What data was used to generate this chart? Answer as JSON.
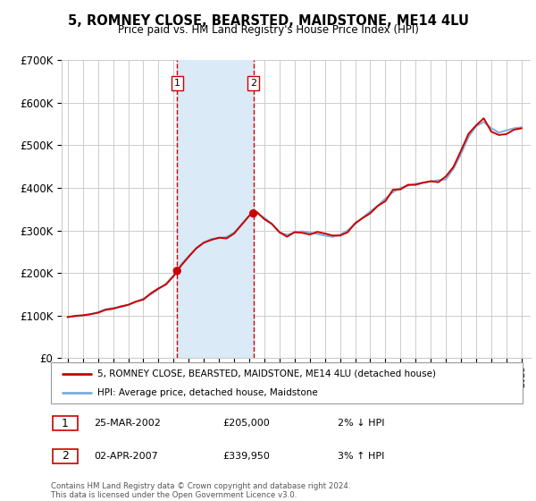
{
  "title": "5, ROMNEY CLOSE, BEARSTED, MAIDSTONE, ME14 4LU",
  "subtitle": "Price paid vs. HM Land Registry's House Price Index (HPI)",
  "legend_line1": "5, ROMNEY CLOSE, BEARSTED, MAIDSTONE, ME14 4LU (detached house)",
  "legend_line2": "HPI: Average price, detached house, Maidstone",
  "transaction1_date": "25-MAR-2002",
  "transaction1_price": "£205,000",
  "transaction1_hpi": "2% ↓ HPI",
  "transaction2_date": "02-APR-2007",
  "transaction2_price": "£339,950",
  "transaction2_hpi": "3% ↑ HPI",
  "footer": "Contains HM Land Registry data © Crown copyright and database right 2024.\nThis data is licensed under the Open Government Licence v3.0.",
  "price_line_color": "#cc0000",
  "hpi_line_color": "#7aaddb",
  "shaded_region_color": "#daeaf6",
  "vline_color": "#cc0000",
  "grid_color": "#cccccc",
  "ylim": [
    0,
    700000
  ],
  "yticks": [
    0,
    100000,
    200000,
    300000,
    400000,
    500000,
    600000,
    700000
  ],
  "ytick_labels": [
    "£0",
    "£100K",
    "£200K",
    "£300K",
    "£400K",
    "£500K",
    "£600K",
    "£700K"
  ],
  "transaction1_year": 2002.23,
  "transaction2_year": 2007.27,
  "transaction1_price_val": 205000,
  "transaction2_price_val": 339950,
  "hpi_data_years": [
    1995.0,
    1995.5,
    1996.0,
    1996.5,
    1997.0,
    1997.5,
    1998.0,
    1998.5,
    1999.0,
    1999.5,
    2000.0,
    2000.5,
    2001.0,
    2001.5,
    2002.0,
    2002.5,
    2003.0,
    2003.5,
    2004.0,
    2004.5,
    2005.0,
    2005.5,
    2006.0,
    2006.5,
    2007.0,
    2007.5,
    2008.0,
    2008.5,
    2009.0,
    2009.5,
    2010.0,
    2010.5,
    2011.0,
    2011.5,
    2012.0,
    2012.5,
    2013.0,
    2013.5,
    2014.0,
    2014.5,
    2015.0,
    2015.5,
    2016.0,
    2016.5,
    2017.0,
    2017.5,
    2018.0,
    2018.5,
    2019.0,
    2019.5,
    2020.0,
    2020.5,
    2021.0,
    2021.5,
    2022.0,
    2022.5,
    2023.0,
    2023.5,
    2024.0,
    2024.5,
    2025.0
  ],
  "hpi_data_values": [
    97000,
    98000,
    100000,
    103000,
    108000,
    115000,
    118000,
    120000,
    125000,
    132000,
    140000,
    150000,
    162000,
    175000,
    195000,
    220000,
    240000,
    258000,
    272000,
    280000,
    282000,
    285000,
    295000,
    315000,
    335000,
    340000,
    330000,
    315000,
    295000,
    290000,
    295000,
    298000,
    295000,
    292000,
    288000,
    285000,
    290000,
    300000,
    315000,
    330000,
    345000,
    358000,
    375000,
    390000,
    400000,
    405000,
    410000,
    412000,
    415000,
    418000,
    420000,
    445000,
    480000,
    520000,
    545000,
    555000,
    540000,
    530000,
    535000,
    540000,
    542000
  ]
}
